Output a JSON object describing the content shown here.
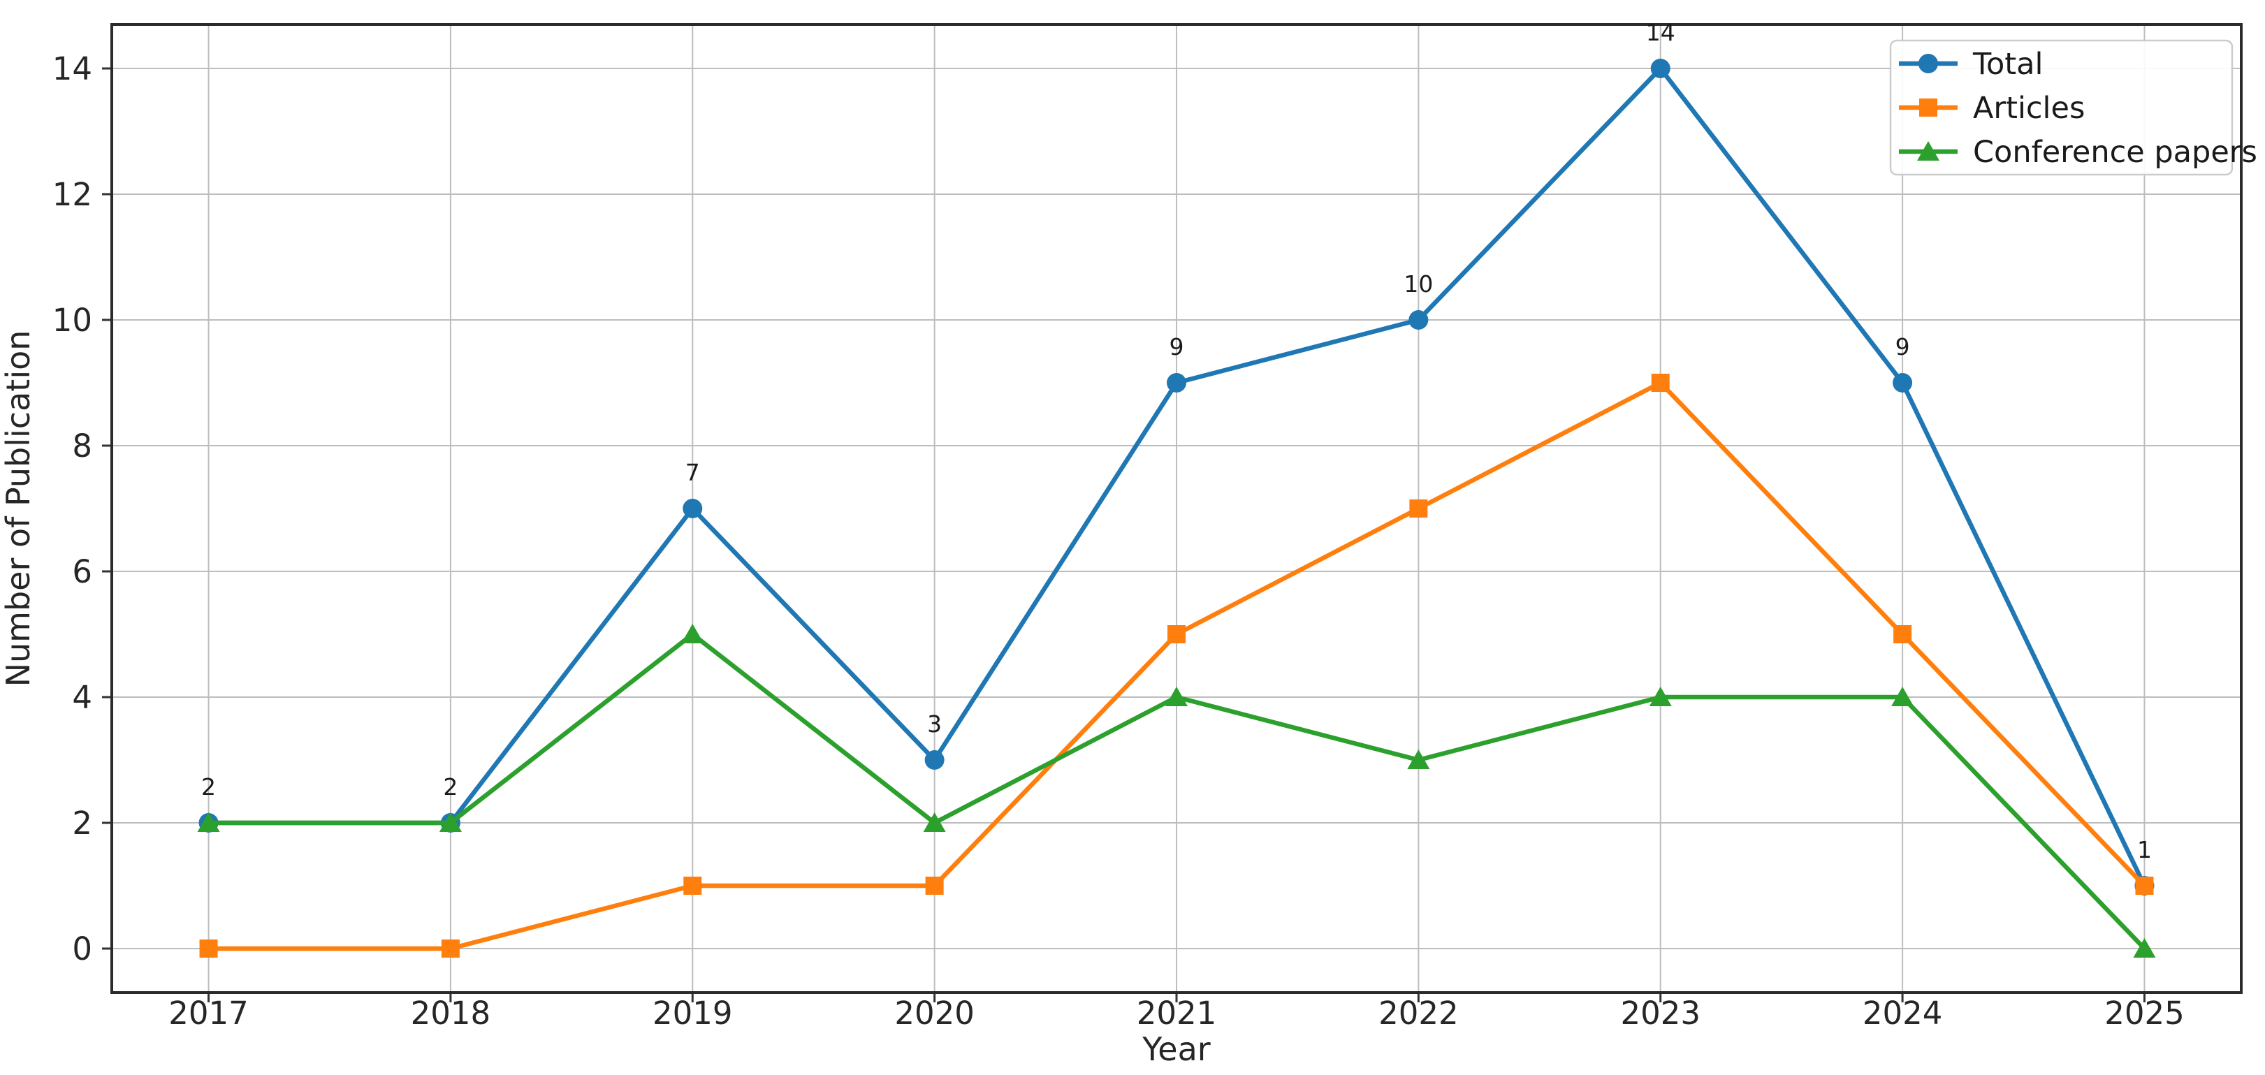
{
  "figure": {
    "background": "#ffffff"
  },
  "chart_data": {
    "type": "line",
    "title": "",
    "xlabel": "Year",
    "ylabel": "Number of Publication",
    "x": [
      2017,
      2018,
      2019,
      2020,
      2021,
      2022,
      2023,
      2024,
      2025
    ],
    "series": [
      {
        "name": "Total",
        "color": "#1f77b4",
        "marker": "circle",
        "values": [
          2,
          2,
          7,
          3,
          9,
          10,
          14,
          9,
          1
        ],
        "annotate": true
      },
      {
        "name": "Articles",
        "color": "#ff7f0e",
        "marker": "square",
        "values": [
          0,
          0,
          1,
          1,
          5,
          7,
          9,
          5,
          1
        ],
        "annotate": false
      },
      {
        "name": "Conference papers",
        "color": "#2ca02c",
        "marker": "triangle",
        "values": [
          2,
          2,
          5,
          2,
          4,
          3,
          4,
          4,
          0
        ],
        "annotate": false
      }
    ],
    "annotations": [
      "2",
      "2",
      "7",
      "3",
      "9",
      "10",
      "14",
      "9",
      "1"
    ],
    "xticks": [
      "2017",
      "2018",
      "2019",
      "2020",
      "2021",
      "2022",
      "2023",
      "2024",
      "2025"
    ],
    "yticks": [
      "0",
      "2",
      "4",
      "6",
      "8",
      "10",
      "12",
      "14"
    ],
    "xlim": [
      2016.6,
      2025.4
    ],
    "ylim": [
      -0.7,
      14.7
    ],
    "grid": true,
    "legend": {
      "position": "upper right",
      "entries": [
        "Total",
        "Articles",
        "Conference papers"
      ]
    }
  },
  "colors": {
    "background": "#ffffff",
    "grid": "#bdbdbd",
    "spine": "#2b2b2b",
    "tick": "#333333",
    "tick_label": "#262626",
    "axis_label": "#262626",
    "annotation": "#1a1a1a",
    "legend_border": "#cccccc",
    "legend_bg": "#ffffff",
    "legend_text": "#1a1a1a"
  }
}
